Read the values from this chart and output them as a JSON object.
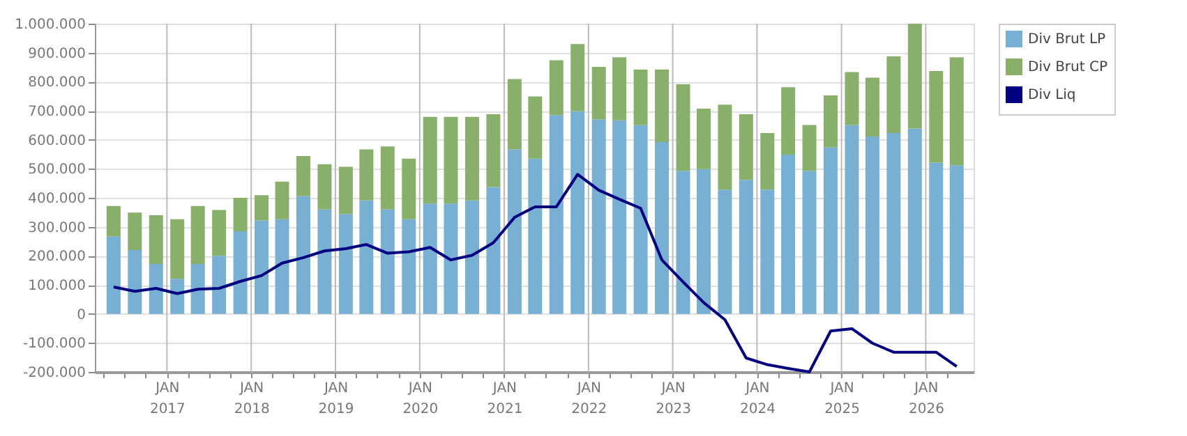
{
  "chart_data": {
    "type": "bar",
    "stacked": true,
    "x": [
      "2016-05-15",
      "2016-08-15",
      "2016-11-15",
      "2017-02-15",
      "2017-05-15",
      "2017-08-15",
      "2017-11-15",
      "2018-02-15",
      "2018-05-15",
      "2018-08-15",
      "2018-11-15",
      "2019-02-15",
      "2019-05-15",
      "2019-08-15",
      "2019-11-15",
      "2020-02-15",
      "2020-05-15",
      "2020-08-15",
      "2020-11-15",
      "2021-02-15",
      "2021-05-15",
      "2021-08-15",
      "2021-11-15",
      "2022-02-15",
      "2022-05-15",
      "2022-08-15",
      "2022-11-15",
      "2023-02-15",
      "2023-05-15",
      "2023-08-15",
      "2023-11-15",
      "2024-02-15",
      "2024-05-15",
      "2024-08-15",
      "2024-11-15",
      "2025-02-15",
      "2025-05-15",
      "2025-08-15",
      "2025-11-15",
      "2026-02-15",
      "2026-05-15"
    ],
    "series": [
      {
        "name": "Div Brut LP",
        "color": "#77b0d3",
        "values": [
          267000,
          220000,
          172000,
          121000,
          172000,
          200000,
          285000,
          322000,
          326000,
          406000,
          360000,
          344000,
          391000,
          360000,
          326000,
          380000,
          380000,
          391000,
          437000,
          567000,
          535000,
          685000,
          698000,
          670000,
          667000,
          651000,
          592000,
          493000,
          499000,
          428000,
          462000,
          428000,
          549000,
          493000,
          574000,
          651000,
          611000,
          623000,
          639000,
          521000,
          512000
        ]
      },
      {
        "name": "Div Brut CP",
        "color": "#88b06b",
        "values": [
          105000,
          129000,
          168000,
          205000,
          200000,
          158000,
          115000,
          87000,
          130000,
          138000,
          156000,
          163000,
          176000,
          217000,
          209000,
          299000,
          299000,
          288000,
          251000,
          242000,
          214000,
          189000,
          232000,
          181000,
          217000,
          191000,
          250000,
          298000,
          208000,
          293000,
          226000,
          195000,
          232000,
          158000,
          179000,
          182000,
          203000,
          265000,
          361000,
          316000,
          372000
        ]
      },
      {
        "name": "Div Liq",
        "type": "line",
        "color": "#000080",
        "values": [
          93000,
          78000,
          88000,
          70000,
          85000,
          88000,
          112000,
          132000,
          175000,
          194000,
          217000,
          225000,
          239000,
          209000,
          214000,
          229000,
          186000,
          202000,
          245000,
          333000,
          369000,
          369000,
          481000,
          426000,
          395000,
          364000,
          186000,
          110000,
          39000,
          -20000,
          -152000,
          -175000,
          -188000,
          -200000,
          -59000,
          -51000,
          -101000,
          -132000,
          -132000,
          -132000,
          -181000
        ]
      }
    ],
    "xlim": [
      "2016-03-25",
      "2026-06-27"
    ],
    "xticks": [
      {
        "value": "2016-04-01",
        "label": null
      },
      {
        "value": "2016-07-01",
        "label": null
      },
      {
        "value": "2016-10-01",
        "label": null
      },
      {
        "value": "2017-01-01",
        "label": "JAN 2017"
      },
      {
        "value": "2017-04-01",
        "label": null
      },
      {
        "value": "2017-07-01",
        "label": null
      },
      {
        "value": "2017-10-01",
        "label": null
      },
      {
        "value": "2018-01-01",
        "label": "JAN 2018"
      },
      {
        "value": "2018-04-01",
        "label": null
      },
      {
        "value": "2018-07-01",
        "label": null
      },
      {
        "value": "2018-10-01",
        "label": null
      },
      {
        "value": "2019-01-01",
        "label": "JAN 2019"
      },
      {
        "value": "2019-04-01",
        "label": null
      },
      {
        "value": "2019-07-01",
        "label": null
      },
      {
        "value": "2019-10-01",
        "label": null
      },
      {
        "value": "2020-01-01",
        "label": "JAN 2020"
      },
      {
        "value": "2020-04-01",
        "label": null
      },
      {
        "value": "2020-07-01",
        "label": null
      },
      {
        "value": "2020-10-01",
        "label": null
      },
      {
        "value": "2021-01-01",
        "label": "JAN 2021"
      },
      {
        "value": "2021-04-01",
        "label": null
      },
      {
        "value": "2021-07-01",
        "label": null
      },
      {
        "value": "2021-10-01",
        "label": null
      },
      {
        "value": "2022-01-01",
        "label": "JAN 2022"
      },
      {
        "value": "2022-04-01",
        "label": null
      },
      {
        "value": "2022-07-01",
        "label": null
      },
      {
        "value": "2022-10-01",
        "label": null
      },
      {
        "value": "2023-01-01",
        "label": "JAN 2023"
      },
      {
        "value": "2023-04-01",
        "label": null
      },
      {
        "value": "2023-07-01",
        "label": null
      },
      {
        "value": "2023-10-01",
        "label": null
      },
      {
        "value": "2024-01-01",
        "label": "JAN 2024"
      },
      {
        "value": "2024-04-01",
        "label": null
      },
      {
        "value": "2024-07-01",
        "label": null
      },
      {
        "value": "2024-10-01",
        "label": null
      },
      {
        "value": "2025-01-01",
        "label": "JAN 2025"
      },
      {
        "value": "2025-04-01",
        "label": null
      },
      {
        "value": "2025-07-01",
        "label": null
      },
      {
        "value": "2025-10-01",
        "label": null
      },
      {
        "value": "2026-01-01",
        "label": "JAN 2026"
      },
      {
        "value": "2026-04-01",
        "label": null
      }
    ],
    "ylim": [
      -200000,
      1000000
    ],
    "yticks": [
      {
        "value": -200000,
        "label": "-200.000"
      },
      {
        "value": -100000,
        "label": "-100.000"
      },
      {
        "value": 0,
        "label": "0"
      },
      {
        "value": 100000,
        "label": "100.000"
      },
      {
        "value": 200000,
        "label": "200.000"
      },
      {
        "value": 300000,
        "label": "300.000"
      },
      {
        "value": 400000,
        "label": "400.000"
      },
      {
        "value": 500000,
        "label": "500.000"
      },
      {
        "value": 600000,
        "label": "600.000"
      },
      {
        "value": 700000,
        "label": "700.000"
      },
      {
        "value": 800000,
        "label": "800.000"
      },
      {
        "value": 900000,
        "label": "900.000"
      },
      {
        "value": 1000000,
        "label": "1.000.000"
      }
    ],
    "grid": true,
    "legend": "right",
    "marker": "none",
    "line_style": "solid"
  }
}
